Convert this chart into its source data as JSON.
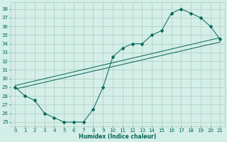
{
  "xlabel": "Humidex (Indice chaleur)",
  "bg_color": "#d4eee8",
  "grid_color": "#b0ccbb",
  "line_color": "#006655",
  "xlim": [
    -0.5,
    21.5
  ],
  "ylim": [
    24.5,
    38.8
  ],
  "yticks": [
    25,
    26,
    27,
    28,
    29,
    30,
    31,
    32,
    33,
    34,
    35,
    36,
    37,
    38
  ],
  "xticks": [
    0,
    1,
    2,
    3,
    4,
    5,
    6,
    7,
    8,
    9,
    10,
    11,
    12,
    13,
    14,
    15,
    16,
    17,
    18,
    19,
    20,
    21
  ],
  "curve_x": [
    0,
    1,
    2,
    3,
    4,
    5,
    6,
    7,
    8,
    9,
    10,
    11,
    12,
    13,
    14,
    15,
    16,
    17,
    18,
    19,
    20,
    21
  ],
  "curve_y": [
    29.0,
    28.0,
    27.5,
    26.0,
    25.5,
    25.0,
    25.0,
    25.0,
    26.5,
    29.0,
    32.5,
    33.5,
    34.0,
    34.0,
    35.0,
    35.5,
    37.5,
    38.0,
    37.5,
    37.0,
    36.0,
    34.5
  ],
  "line2_x": [
    0,
    21
  ],
  "line2_y": [
    29.2,
    34.7
  ],
  "line3_x": [
    0,
    21
  ],
  "line3_y": [
    28.8,
    34.2
  ],
  "markersize": 2.5
}
